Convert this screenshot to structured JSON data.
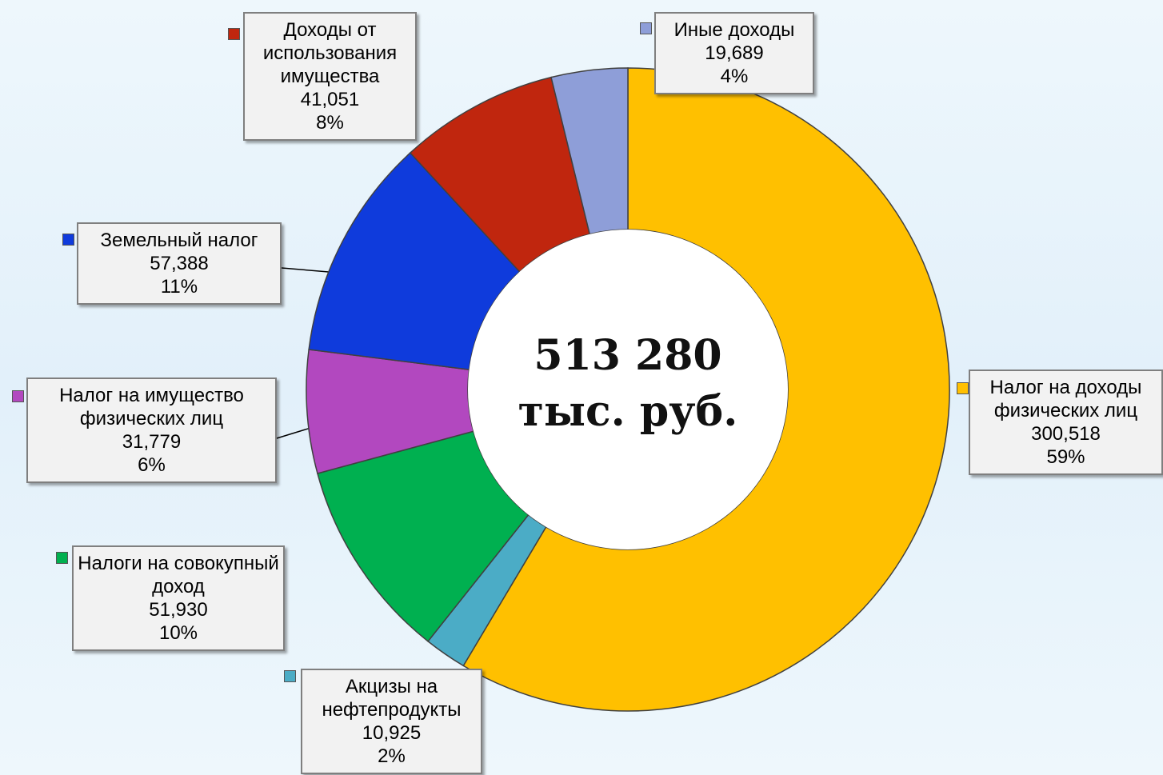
{
  "chart_data": {
    "type": "donut",
    "center_label": "513 280",
    "center_unit": "тыс. руб.",
    "categories": [
      "Налог на доходы физических лиц",
      "Акцизы на нефтепродукты",
      "Налоги на совокупный доход",
      "Налог на имущество физических лиц",
      "Земельный налог",
      "Доходы от использования имущества",
      "Иные доходы"
    ],
    "values": [
      300518,
      10925,
      51930,
      31779,
      57388,
      41051,
      19689
    ],
    "value_labels": [
      "300,518",
      "10,925",
      "51,930",
      "31,779",
      "57,388",
      "41,051",
      "19,689"
    ],
    "percent_labels": [
      "59%",
      "2%",
      "10%",
      "6%",
      "11%",
      "8%",
      "4%"
    ],
    "colors": [
      "#ffc000",
      "#4bacc6",
      "#00b050",
      "#b248bf",
      "#0f3bdc",
      "#c0260e",
      "#8e9ed8"
    ]
  }
}
